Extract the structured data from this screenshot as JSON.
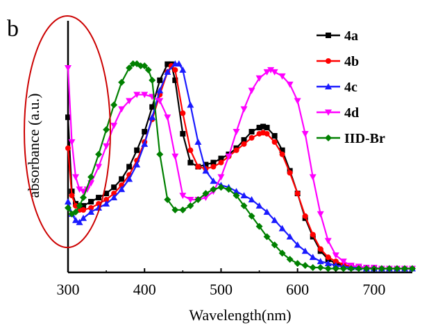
{
  "chart_data": {
    "type": "line",
    "panel_label": "b",
    "xlabel": "Wavelength(nm)",
    "ylabel": "absorbance (a.u.)",
    "xlim": [
      300,
      750
    ],
    "ylim": [
      0,
      1.0
    ],
    "xticks": [
      "300",
      "400",
      "500",
      "600",
      "700"
    ],
    "xtick_values": [
      300,
      400,
      500,
      600,
      700
    ],
    "yticks_shown": false,
    "annotation": "red ellipse highlighting the 300-360 nm region",
    "annotation_color": "#cc0000",
    "legend_position": "top-right",
    "series": [
      {
        "name": "4a",
        "color": "#000000",
        "marker": "square",
        "x": [
          300,
          305,
          310,
          315,
          320,
          330,
          340,
          350,
          360,
          370,
          380,
          390,
          400,
          410,
          420,
          430,
          435,
          440,
          450,
          460,
          470,
          480,
          490,
          500,
          510,
          520,
          530,
          540,
          550,
          555,
          560,
          570,
          580,
          590,
          600,
          610,
          620,
          630,
          640,
          650,
          660,
          670,
          680,
          690,
          700,
          710,
          720,
          730,
          740,
          750
        ],
        "y": [
          0.74,
          0.38,
          0.32,
          0.3,
          0.31,
          0.33,
          0.35,
          0.37,
          0.4,
          0.44,
          0.5,
          0.58,
          0.67,
          0.79,
          0.92,
          0.998,
          0.998,
          0.92,
          0.66,
          0.52,
          0.5,
          0.51,
          0.52,
          0.54,
          0.56,
          0.59,
          0.63,
          0.67,
          0.69,
          0.695,
          0.69,
          0.65,
          0.58,
          0.48,
          0.37,
          0.25,
          0.16,
          0.09,
          0.05,
          0.03,
          0.02,
          0.015,
          0.01,
          0.01,
          0.005,
          0.005,
          0.005,
          0.005,
          0.005,
          0.005
        ]
      },
      {
        "name": "4b",
        "color": "#ff0000",
        "marker": "circle",
        "x": [
          300,
          305,
          310,
          315,
          320,
          330,
          340,
          350,
          360,
          370,
          380,
          390,
          400,
          410,
          420,
          430,
          435,
          440,
          450,
          460,
          470,
          480,
          490,
          500,
          510,
          520,
          530,
          540,
          550,
          555,
          560,
          570,
          580,
          590,
          600,
          610,
          620,
          630,
          640,
          650,
          660,
          670,
          680,
          690,
          700,
          710,
          720,
          730,
          740,
          750
        ],
        "y": [
          0.59,
          0.36,
          0.31,
          0.29,
          0.29,
          0.3,
          0.32,
          0.34,
          0.37,
          0.41,
          0.46,
          0.53,
          0.62,
          0.73,
          0.85,
          0.96,
          0.99,
          0.97,
          0.76,
          0.58,
          0.5,
          0.49,
          0.5,
          0.52,
          0.55,
          0.58,
          0.61,
          0.64,
          0.66,
          0.665,
          0.66,
          0.62,
          0.56,
          0.47,
          0.37,
          0.26,
          0.17,
          0.1,
          0.06,
          0.04,
          0.025,
          0.015,
          0.01,
          0.01,
          0.005,
          0.005,
          0.005,
          0.005,
          0.005,
          0.005
        ]
      },
      {
        "name": "4c",
        "color": "#1a1aff",
        "marker": "triangle-up",
        "x": [
          300,
          305,
          310,
          315,
          320,
          330,
          340,
          350,
          360,
          370,
          380,
          390,
          400,
          410,
          420,
          430,
          440,
          445,
          450,
          460,
          470,
          480,
          490,
          500,
          510,
          520,
          530,
          540,
          550,
          560,
          570,
          580,
          590,
          600,
          610,
          620,
          630,
          640,
          650,
          660,
          670,
          680,
          690,
          700,
          710,
          720,
          730,
          740,
          750
        ],
        "y": [
          0.33,
          0.27,
          0.24,
          0.23,
          0.25,
          0.28,
          0.3,
          0.32,
          0.35,
          0.39,
          0.44,
          0.51,
          0.61,
          0.74,
          0.87,
          0.96,
          1.0,
          1.0,
          0.97,
          0.8,
          0.62,
          0.48,
          0.43,
          0.41,
          0.4,
          0.38,
          0.36,
          0.34,
          0.31,
          0.28,
          0.24,
          0.2,
          0.16,
          0.12,
          0.09,
          0.06,
          0.04,
          0.03,
          0.02,
          0.015,
          0.01,
          0.01,
          0.005,
          0.005,
          0.005,
          0.005,
          0.005,
          0.005,
          0.005
        ]
      },
      {
        "name": "4d",
        "color": "#ff00ff",
        "marker": "triangle-down",
        "x": [
          300,
          305,
          310,
          315,
          320,
          325,
          330,
          340,
          350,
          360,
          370,
          380,
          390,
          400,
          410,
          420,
          430,
          440,
          450,
          460,
          470,
          480,
          490,
          500,
          510,
          520,
          530,
          540,
          550,
          560,
          565,
          570,
          580,
          590,
          600,
          610,
          620,
          630,
          640,
          650,
          660,
          670,
          680,
          690,
          700,
          710,
          720,
          730,
          740,
          750
        ],
        "y": [
          0.98,
          0.62,
          0.45,
          0.39,
          0.38,
          0.39,
          0.42,
          0.5,
          0.6,
          0.7,
          0.78,
          0.82,
          0.85,
          0.85,
          0.84,
          0.82,
          0.74,
          0.55,
          0.36,
          0.34,
          0.34,
          0.35,
          0.38,
          0.45,
          0.55,
          0.67,
          0.78,
          0.87,
          0.93,
          0.96,
          0.97,
          0.96,
          0.94,
          0.9,
          0.82,
          0.66,
          0.45,
          0.27,
          0.14,
          0.07,
          0.04,
          0.02,
          0.015,
          0.01,
          0.01,
          0.005,
          0.005,
          0.005,
          0.005,
          0.005
        ]
      },
      {
        "name": "IID-Br",
        "color": "#008000",
        "marker": "diamond",
        "x": [
          300,
          305,
          310,
          315,
          320,
          330,
          340,
          350,
          360,
          370,
          380,
          385,
          390,
          395,
          400,
          405,
          410,
          420,
          430,
          440,
          450,
          460,
          470,
          480,
          490,
          500,
          510,
          520,
          530,
          540,
          550,
          560,
          570,
          580,
          590,
          600,
          610,
          620,
          630,
          640,
          650,
          660,
          670,
          680,
          690,
          700,
          710,
          720,
          730,
          740,
          750
        ],
        "y": [
          0.3,
          0.27,
          0.28,
          0.31,
          0.35,
          0.45,
          0.56,
          0.68,
          0.8,
          0.91,
          0.98,
          1.0,
          1.0,
          0.99,
          0.99,
          0.97,
          0.92,
          0.56,
          0.34,
          0.29,
          0.29,
          0.31,
          0.34,
          0.37,
          0.39,
          0.4,
          0.39,
          0.36,
          0.31,
          0.26,
          0.21,
          0.16,
          0.12,
          0.08,
          0.05,
          0.03,
          0.02,
          0.01,
          0.01,
          0.005,
          0.005,
          0.005,
          0.005,
          0.005,
          0.005,
          0.005,
          0.005,
          0.005,
          0.005,
          0.005,
          0.005
        ]
      }
    ]
  }
}
